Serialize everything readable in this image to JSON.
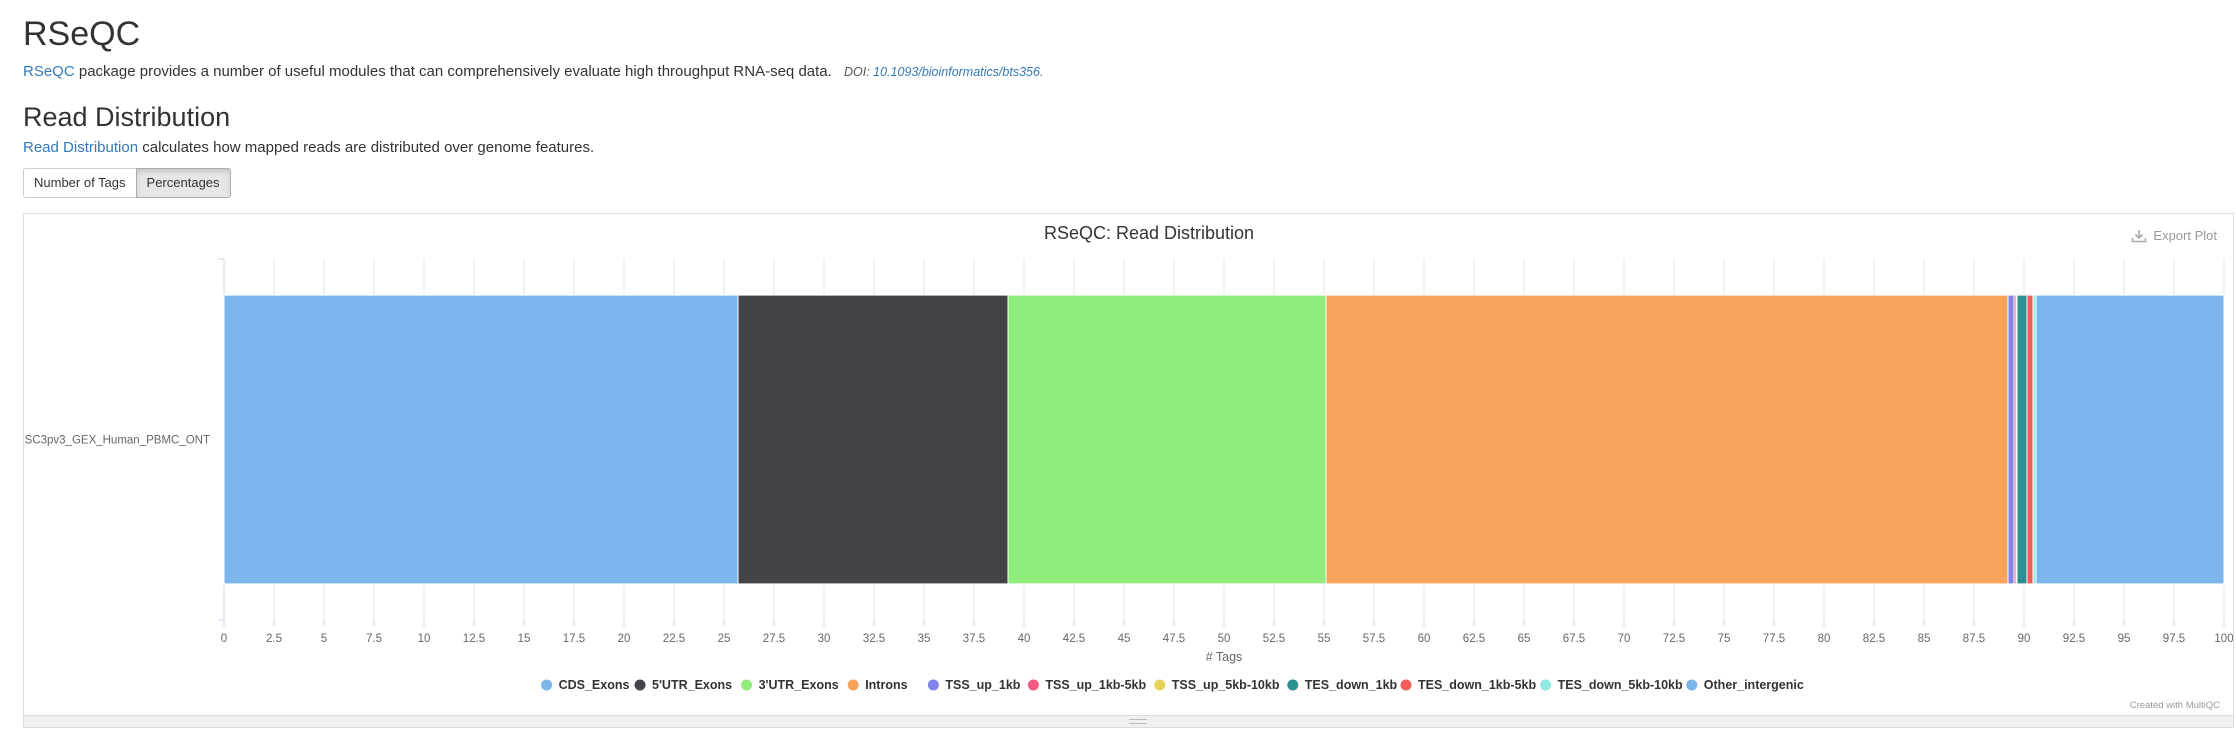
{
  "page": {
    "title": "RSeQC",
    "intro_link": "RSeQC",
    "intro_text": " package provides a number of useful modules that can comprehensively evaluate high throughput RNA-seq data.",
    "doi_label": "DOI: ",
    "doi_link": "10.1093/bioinformatics/bts356",
    "doi_end": ".",
    "section_title": "Read Distribution",
    "section_link": "Read Distribution",
    "section_text": " calculates how mapped reads are distributed over genome features.",
    "buttons": [
      "Number of Tags",
      "Percentages"
    ],
    "active_button": "Percentages",
    "export_label": "Export Plot",
    "credit": "Created with MultiQC"
  },
  "chart_data": {
    "type": "bar",
    "orientation": "horizontal",
    "stacked": true,
    "title": "RSeQC: Read Distribution",
    "xlabel": "# Tags",
    "ylabel": "",
    "xlim": [
      0,
      100
    ],
    "xticks": [
      0,
      2.5,
      5,
      7.5,
      10,
      12.5,
      15,
      17.5,
      20,
      22.5,
      25,
      27.5,
      30,
      32.5,
      35,
      37.5,
      40,
      42.5,
      45,
      47.5,
      50,
      52.5,
      55,
      57.5,
      60,
      62.5,
      65,
      67.5,
      70,
      72.5,
      75,
      77.5,
      80,
      82.5,
      85,
      87.5,
      90,
      92.5,
      95,
      97.5,
      100
    ],
    "grid": true,
    "legend_position": "bottom",
    "categories": [
      "SC3pv3_GEX_Human_PBMC_ONT"
    ],
    "series": [
      {
        "name": "CDS_Exons",
        "color": "#7cb5ec",
        "values": [
          25.7
        ]
      },
      {
        "name": "5'UTR_Exons",
        "color": "#434348",
        "values": [
          13.5
        ]
      },
      {
        "name": "3'UTR_Exons",
        "color": "#90ed7d",
        "values": [
          15.9
        ]
      },
      {
        "name": "Introns",
        "color": "#f7a35c",
        "values": [
          34.1
        ]
      },
      {
        "name": "TSS_up_1kb",
        "color": "#8085e9",
        "values": [
          0.3
        ]
      },
      {
        "name": "TSS_up_1kb-5kb",
        "color": "#f15c80",
        "values": [
          0.1
        ]
      },
      {
        "name": "TSS_up_5kb-10kb",
        "color": "#e4d354",
        "values": [
          0.05
        ]
      },
      {
        "name": "TES_down_1kb",
        "color": "#2b908f",
        "values": [
          0.5
        ]
      },
      {
        "name": "TES_down_1kb-5kb",
        "color": "#f45b5b",
        "values": [
          0.3
        ]
      },
      {
        "name": "TES_down_5kb-10kb",
        "color": "#91e8e1",
        "values": [
          0.15
        ]
      },
      {
        "name": "Other_intergenic",
        "color": "#7cb5ec",
        "values": [
          9.4
        ]
      }
    ]
  }
}
